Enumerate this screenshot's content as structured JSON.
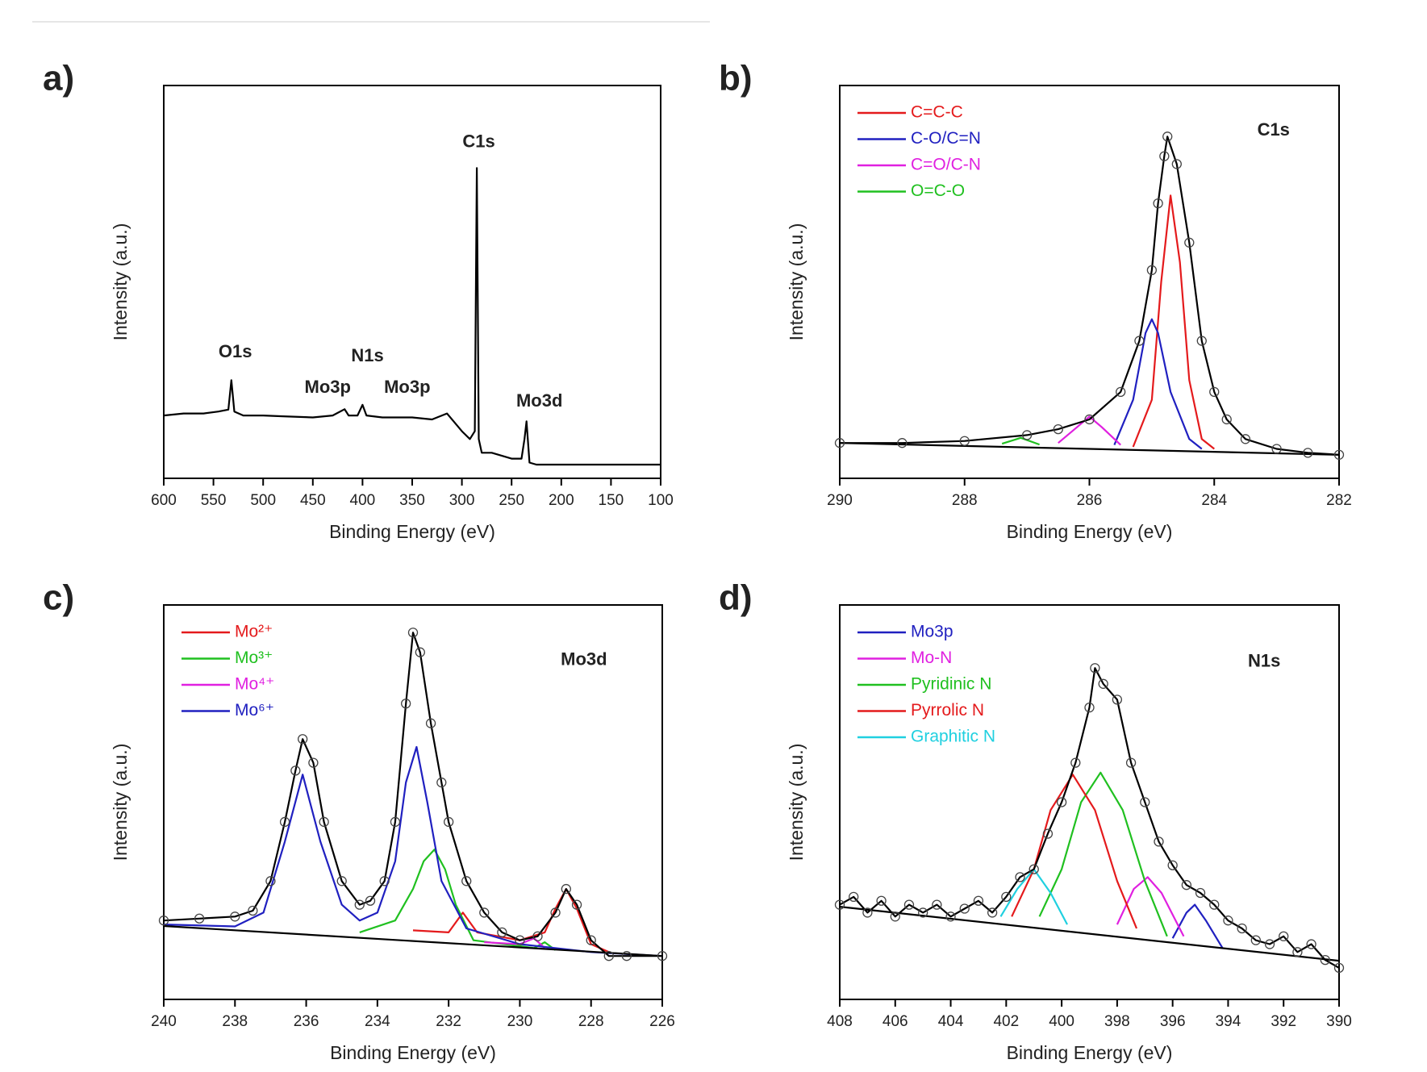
{
  "chart_data": [
    {
      "type": "line",
      "label": "a)",
      "xlabel": "Binding Energy (eV)",
      "ylabel": "Intensity (a.u.)",
      "xlim": [
        600,
        100
      ],
      "xticks": [
        600,
        550,
        500,
        450,
        400,
        350,
        300,
        250,
        200,
        150,
        100
      ],
      "ylim": [
        0,
        100
      ],
      "annotations": [
        {
          "text": "O1s",
          "x": 528,
          "y": 32
        },
        {
          "text": "Mo3p",
          "x": 435,
          "y": 23
        },
        {
          "text": "N1s",
          "x": 395,
          "y": 31
        },
        {
          "text": "Mo3p",
          "x": 355,
          "y": 23
        },
        {
          "text": "C1s",
          "x": 283,
          "y": 85.5
        },
        {
          "text": "Mo3d",
          "x": 222,
          "y": 19.5
        }
      ],
      "series": [
        {
          "color": "#000000",
          "x": [
            600,
            580,
            560,
            545,
            535,
            532,
            529,
            520,
            500,
            480,
            450,
            430,
            418,
            414,
            405,
            400,
            396,
            380,
            350,
            330,
            315,
            300,
            292,
            287,
            285,
            283,
            280,
            270,
            250,
            240,
            237,
            235,
            232,
            225,
            200,
            150,
            100
          ],
          "values": [
            16,
            16.5,
            16.5,
            17,
            17.5,
            25,
            17,
            16,
            16,
            15.8,
            15.5,
            16,
            17.6,
            16,
            16,
            18.7,
            16,
            15.5,
            15.5,
            15,
            16.5,
            12,
            10,
            12,
            79,
            10,
            6.5,
            6.5,
            5,
            5,
            10,
            14.5,
            4,
            3.5,
            3.5,
            3.5,
            3.5
          ]
        }
      ]
    },
    {
      "type": "line",
      "label": "b)",
      "xlabel": "Binding Energy (eV)",
      "ylabel": "Intensity (a.u.)",
      "xlim": [
        290,
        282
      ],
      "xticks": [
        290,
        288,
        286,
        284,
        282
      ],
      "ylim": [
        0,
        100
      ],
      "legend": "upper left",
      "annotations": [
        {
          "text": "C1s",
          "x": 283.05,
          "y": 88.5
        }
      ],
      "series": [
        {
          "name": "C=C-C",
          "color": "#e41a1c",
          "x": [
            285.3,
            285,
            284.85,
            284.7,
            284.55,
            284.4,
            284.2,
            284
          ],
          "values": [
            8,
            20,
            50,
            72,
            55,
            25,
            10,
            7.5
          ]
        },
        {
          "name": "C-O/C=N",
          "color": "#2020c0",
          "x": [
            285.6,
            285.3,
            285.1,
            285,
            284.9,
            284.7,
            284.4,
            284.2
          ],
          "values": [
            8.5,
            20,
            37,
            40.5,
            37,
            22,
            10,
            7.5
          ]
        },
        {
          "name": "C=O/C-N",
          "color": "#e020e0",
          "x": [
            286.5,
            286.2,
            286,
            285.8,
            285.5
          ],
          "values": [
            9,
            13,
            15.7,
            13,
            8.5
          ]
        },
        {
          "name": "O=C-O",
          "color": "#20c020",
          "x": [
            287.4,
            287.1,
            286.8
          ],
          "values": [
            8.8,
            10.3,
            8.6
          ]
        },
        {
          "color": "#000000",
          "x": [
            290,
            282
          ],
          "values": [
            9,
            6
          ]
        },
        {
          "color": "#000000",
          "markers": true,
          "x": [
            290,
            289,
            288,
            287,
            286.5,
            286,
            285.5,
            285.2,
            285,
            284.9,
            284.8,
            284.75,
            284.6,
            284.4,
            284.2,
            284,
            283.8,
            283.5,
            283,
            282.5,
            282
          ],
          "values": [
            9,
            9,
            9.5,
            11,
            12.5,
            15,
            22,
            35,
            53,
            70,
            82,
            87,
            80,
            60,
            35,
            22,
            15,
            10,
            7.5,
            6.5,
            6
          ]
        }
      ]
    },
    {
      "type": "line",
      "label": "c)",
      "xlabel": "Binding Energy (eV)",
      "ylabel": "Intensity (a.u.)",
      "xlim": [
        240,
        226
      ],
      "xticks": [
        240,
        238,
        236,
        234,
        232,
        230,
        228,
        226
      ],
      "ylim": [
        0,
        100
      ],
      "legend": "upper left",
      "annotations": [
        {
          "text": "Mo3d",
          "x": 228.2,
          "y": 86
        }
      ],
      "series": [
        {
          "name": "Mo²⁺",
          "color": "#e41a1c",
          "x": [
            233,
            232,
            231.6,
            231.2,
            230,
            229.3,
            229,
            228.7,
            228.4,
            228,
            227.5
          ],
          "values": [
            17.5,
            17,
            22,
            17,
            15,
            17,
            23,
            28,
            23,
            14,
            12
          ]
        },
        {
          "name": "Mo³⁺",
          "color": "#20c020",
          "x": [
            234.5,
            233.5,
            233,
            232.7,
            232.4,
            232.1,
            231.8,
            231.3,
            230,
            229.6,
            229.3,
            229
          ],
          "values": [
            17,
            20,
            28,
            35,
            38,
            33,
            24,
            15,
            13.5,
            13,
            14.5,
            12.5
          ]
        },
        {
          "name": "Mo⁴⁺",
          "color": "#e020e0",
          "x": [
            231,
            230,
            229.6,
            229.3
          ],
          "values": [
            14.5,
            14,
            15.5,
            13
          ]
        },
        {
          "name": "Mo⁶⁺",
          "color": "#2020c0",
          "x": [
            240,
            238,
            237.2,
            236.6,
            236.1,
            235.6,
            235,
            234.5,
            234,
            233.5,
            233.2,
            232.9,
            232.6,
            232.2,
            231.5,
            230,
            228,
            226
          ],
          "values": [
            19,
            18.5,
            22,
            40,
            57,
            40,
            24,
            20,
            22,
            35,
            55,
            64,
            50,
            30,
            18,
            14,
            12,
            11
          ]
        },
        {
          "color": "#000000",
          "x": [
            240,
            226
          ],
          "values": [
            18.6,
            11
          ]
        },
        {
          "color": "#000000",
          "markers": true,
          "x": [
            240,
            239,
            238,
            237.5,
            237,
            236.6,
            236.3,
            236.1,
            235.8,
            235.5,
            235,
            234.5,
            234.2,
            233.8,
            233.5,
            233.2,
            233,
            232.8,
            232.5,
            232.2,
            232,
            231.5,
            231,
            230.5,
            230,
            229.5,
            229,
            228.7,
            228.4,
            228,
            227.5,
            227,
            226
          ],
          "values": [
            20,
            20.5,
            21,
            22.5,
            30,
            45,
            58,
            66,
            60,
            45,
            30,
            24,
            25,
            30,
            45,
            75,
            93,
            88,
            70,
            55,
            45,
            30,
            22,
            17,
            15,
            16,
            22,
            28,
            24,
            15,
            11,
            11,
            11
          ]
        }
      ]
    },
    {
      "type": "line",
      "label": "d)",
      "xlabel": "Binding Energy (eV)",
      "ylabel": "Intensity (a.u.)",
      "xlim": [
        408,
        390
      ],
      "xticks": [
        408,
        406,
        404,
        402,
        400,
        398,
        396,
        394,
        392,
        390
      ],
      "ylim": [
        0,
        100
      ],
      "legend": "upper left",
      "annotations": [
        {
          "text": "N1s",
          "x": 392.7,
          "y": 85.5
        }
      ],
      "series": [
        {
          "name": "Mo3p",
          "color": "#2020c0",
          "x": [
            396,
            395.5,
            395.2,
            394.8,
            394.2
          ],
          "values": [
            15.5,
            22,
            24,
            20,
            13
          ]
        },
        {
          "name": "Mo-N",
          "color": "#e020e0",
          "x": [
            398,
            397.4,
            396.9,
            396.4,
            395.6
          ],
          "values": [
            19,
            28,
            31,
            27,
            16
          ]
        },
        {
          "name": "Pyridinic N",
          "color": "#20c020",
          "x": [
            400.8,
            400,
            399.3,
            398.6,
            397.8,
            397,
            396.2
          ],
          "values": [
            21,
            33,
            50,
            57.5,
            48,
            30,
            16
          ]
        },
        {
          "name": "Pyrrolic N",
          "color": "#e41a1c",
          "x": [
            401.8,
            401,
            400.4,
            399.6,
            398.8,
            398,
            397.3
          ],
          "values": [
            21,
            33,
            48,
            57,
            48,
            30,
            18
          ]
        },
        {
          "name": "Graphitic N",
          "color": "#20d0e0",
          "x": [
            402.2,
            401.6,
            401,
            400.4,
            399.8
          ],
          "values": [
            21,
            28,
            33,
            27,
            19
          ]
        },
        {
          "color": "#000000",
          "x": [
            408,
            390
          ],
          "values": [
            23.5,
            9.8
          ]
        },
        {
          "color": "#000000",
          "markers": true,
          "x": [
            408,
            407.5,
            407,
            406.5,
            406,
            405.5,
            405,
            404.5,
            404,
            403.5,
            403,
            402.5,
            402,
            401.5,
            401,
            400.5,
            400,
            399.5,
            399,
            398.8,
            398.5,
            398,
            397.5,
            397,
            396.5,
            396,
            395.5,
            395,
            394.5,
            394,
            393.5,
            393,
            392.5,
            392,
            391.5,
            391,
            390.5,
            390
          ],
          "values": [
            24,
            26,
            22,
            25,
            21,
            24,
            22,
            24,
            21,
            23,
            25,
            22,
            26,
            31,
            33,
            42,
            50,
            60,
            74,
            84,
            80,
            76,
            60,
            50,
            40,
            34,
            29,
            27,
            24,
            20,
            18,
            15,
            14,
            16,
            12,
            14,
            10,
            8
          ]
        }
      ]
    }
  ]
}
